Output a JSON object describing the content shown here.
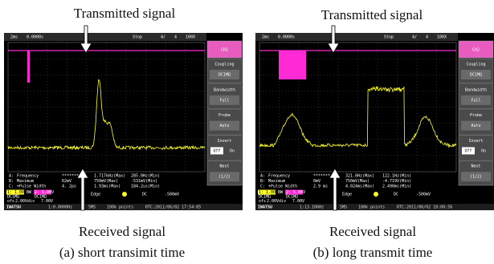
{
  "panels": [
    {
      "top_label": "Transmitted signal",
      "bottom_label": "Received signal",
      "caption": "(a) short transimit time",
      "status": [
        "2ms",
        "0.0000s",
        "Stop",
        "4/",
        "4",
        "100X"
      ],
      "menu": [
        {
          "title": "CH2"
        },
        {
          "title": "Coupling",
          "value": "DC1MΩ"
        },
        {
          "title": "Bandwidth",
          "value": "Full"
        },
        {
          "title": "Probe",
          "value": "Auto"
        },
        {
          "title": "Invert",
          "value": "Off",
          "alt": "On"
        },
        {
          "title": "Next",
          "value": "(1/2)"
        }
      ],
      "measurements": [
        [
          "A:",
          "Frequency",
          "*******",
          "1.717kHz(Max)",
          "285.0Hz(Min)"
        ],
        [
          "B:",
          "Maximum",
          "62mV",
          "750mV(Max)",
          "-531mV(Min)"
        ],
        [
          "C:",
          "+Pulse Width",
          "4. 2ps",
          "1.93ms(Max)",
          "184.2us(Min)"
        ]
      ],
      "channels": [
        "1: 1.00V",
        "BW",
        "2: 5.00V"
      ],
      "coupling": [
        "DC1MΩ",
        "DC1MΩ"
      ],
      "offsets": [
        "ofs",
        "2.00Vdiv",
        "7.00V"
      ],
      "trigger": [
        "Edge",
        "DC",
        "-500mV"
      ],
      "footer": [
        "IWATSU",
        "1:0.0000Hz",
        "5MS",
        "100k points",
        "RTC:2011/06/02 17:54:05"
      ]
    },
    {
      "top_label": "Transmitted signal",
      "bottom_label": "Received signal",
      "caption": "(b) long transmit time",
      "status": [
        "2ms",
        "0.0000s",
        "Stop",
        "4/",
        "4",
        "100X"
      ],
      "menu": [
        {
          "title": "CH2"
        },
        {
          "title": "Coupling",
          "value": "DC1MΩ"
        },
        {
          "title": "Bandwidth",
          "value": "Full"
        },
        {
          "title": "Probe",
          "value": "Auto"
        },
        {
          "title": "Invert",
          "value": "Off",
          "alt": "On"
        },
        {
          "title": "Next",
          "value": "(1/2)"
        }
      ],
      "measurements": [
        [
          "A:",
          "Frequency",
          "*******",
          "321.0Hz(Max)",
          "122.1Hz(Min)"
        ],
        [
          "B:",
          "Maximum",
          "0mV",
          "750mV(Max)",
          "-4.719V(Min)"
        ],
        [
          "C:",
          "+Pulse Width",
          "2.9 ms",
          "4.024ms(Max)",
          "2.490ms(Min)"
        ]
      ],
      "channels": [
        "1: 1.00V",
        "BW",
        "2: 5.00V"
      ],
      "coupling": [
        "DC1MΩ",
        "DC1MΩ"
      ],
      "offsets": [
        "ofs",
        "2.00Vdiv",
        "7.00V"
      ],
      "trigger": [
        "Edge",
        "DC",
        "-500mV"
      ],
      "footer": [
        "IWATSU",
        "1:13.106Hz",
        "5MS",
        "100k points",
        "RTC:2011/06/02 18:00:56"
      ]
    }
  ]
}
